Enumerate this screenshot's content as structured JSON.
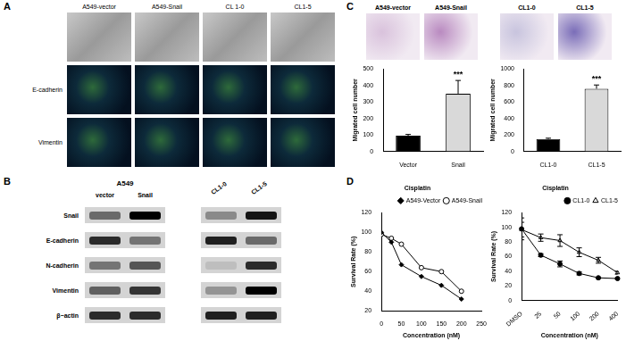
{
  "panels": {
    "A": {
      "label": "A",
      "columns": [
        "A549-vector",
        "A549-Snail",
        "CL 1-0",
        "CL1-5"
      ],
      "rows": [
        "E-cadherin",
        "Vimentin"
      ]
    },
    "B": {
      "label": "B",
      "groups": [
        {
          "title": "A549",
          "lanes": [
            "vector",
            "Snail"
          ]
        },
        {
          "lanes": [
            "CL1-0",
            "CL1-5"
          ]
        }
      ],
      "rows": [
        "Snail",
        "E-cadherin",
        "N-cadherin",
        "Vimentin",
        "β−actin"
      ],
      "band_intensity": [
        [
          0.5,
          1.0,
          0.35,
          0.9
        ],
        [
          0.8,
          0.45,
          0.85,
          0.5
        ],
        [
          0.45,
          0.6,
          0.1,
          0.8
        ],
        [
          0.55,
          0.75,
          0.3,
          1.0
        ],
        [
          0.8,
          0.8,
          0.85,
          0.85
        ]
      ]
    },
    "C": {
      "label": "C",
      "images": [
        "A549-vector",
        "A549-Snail",
        "CL1-0",
        "CL1-5"
      ]
    },
    "D": {
      "label": "D"
    }
  },
  "chart_data": [
    {
      "type": "bar",
      "categories": [
        "Vector",
        "Snail"
      ],
      "values": [
        95,
        350
      ],
      "errors": [
        8,
        80
      ],
      "colors": [
        "#000000",
        "#d9d9d9"
      ],
      "y_label": "Migrated cell number",
      "ylim": [
        0,
        500
      ],
      "yticks": [
        0,
        100,
        200,
        300,
        400,
        500
      ],
      "grid": false,
      "annotations": [
        {
          "text": "***",
          "category": "Snail"
        }
      ]
    },
    {
      "type": "bar",
      "categories": [
        "CL1-0",
        "CL1-5"
      ],
      "values": [
        150,
        760
      ],
      "errors": [
        10,
        45
      ],
      "colors": [
        "#000000",
        "#d9d9d9"
      ],
      "y_label": "Migrated cell number",
      "ylim": [
        0,
        1000
      ],
      "yticks": [
        0,
        200,
        400,
        600,
        800,
        1000
      ],
      "grid": false,
      "annotations": [
        {
          "text": "***",
          "category": "CL1-5"
        }
      ]
    },
    {
      "type": "line",
      "title": "Cisplatin",
      "x": [
        0,
        25,
        50,
        100,
        150,
        200
      ],
      "series": [
        {
          "name": "A549-Vector",
          "color": "#000000",
          "marker": "filled_diamond",
          "values": [
            100,
            90,
            67,
            55,
            46,
            32
          ]
        },
        {
          "name": "A549-Snail",
          "color": "#000000",
          "marker": "open_circle",
          "values": [
            98,
            94,
            88,
            64,
            60,
            40
          ]
        }
      ],
      "xlim": [
        0,
        250
      ],
      "xticks": [
        0,
        50,
        100,
        150,
        200,
        250
      ],
      "ylim": [
        20,
        120
      ],
      "yticks": [
        20,
        40,
        60,
        80,
        100,
        120
      ],
      "x_label": "Concentration (nM)",
      "y_label": "Survival Rate (%)",
      "legend": "upper right",
      "grid": false
    },
    {
      "type": "line",
      "title": "Cisplatin",
      "categories": [
        "DMSO",
        "25",
        "50",
        "100",
        "200",
        "400"
      ],
      "series": [
        {
          "name": "CL1-0",
          "color": "#000000",
          "marker": "filled_circle",
          "values": [
            98,
            62,
            50,
            37,
            31,
            30
          ],
          "errors": [
            15,
            2,
            4,
            2,
            1,
            1
          ]
        },
        {
          "name": "CL1-5",
          "color": "#000000",
          "marker": "open_triangle",
          "values": [
            97,
            86,
            82,
            66,
            55,
            38
          ],
          "errors": [
            10,
            5,
            8,
            6,
            4,
            2
          ]
        }
      ],
      "ylim": [
        0,
        120
      ],
      "yticks": [
        0,
        20,
        40,
        60,
        80,
        100,
        120
      ],
      "x_label": "Concentration (nM)",
      "y_label": "Survival Rate (%)",
      "legend": "upper right",
      "grid": false
    }
  ]
}
